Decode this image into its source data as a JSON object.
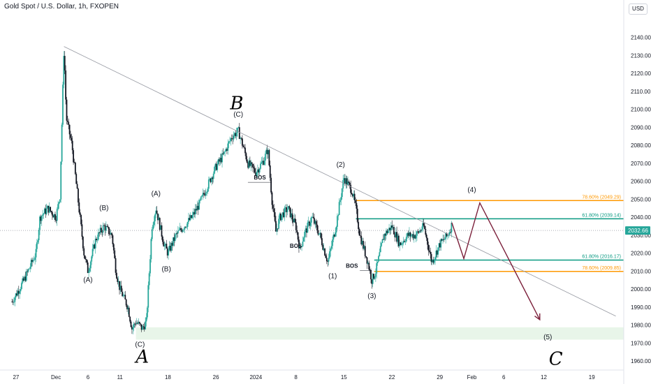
{
  "header": {
    "title": "Gold Spot / U.S. Dollar, 1h, FXOPEN",
    "currency_button": "USD"
  },
  "colors": {
    "up": "#26a69a",
    "down": "#131722",
    "fib_orange": "#ff9800",
    "fib_green": "#089981",
    "projection": "#7b1f3a",
    "zone": "#e8f5e9",
    "price_badge": "#26a69a"
  },
  "chart_data": {
    "type": "candlestick",
    "ylim": [
      1955,
      2150
    ],
    "x_range": [
      -2,
      76
    ],
    "y_ticks": [
      1960,
      1970,
      1980,
      1990,
      2000,
      2010,
      2020,
      2030,
      2040,
      2050,
      2060,
      2070,
      2080,
      2090,
      2100,
      2110,
      2120,
      2130,
      2140
    ],
    "y_tick_labels": [
      "1960.00",
      "1970.00",
      "1980.00",
      "1990.00",
      "2000.00",
      "2010.00",
      "2020.00",
      "2030.00",
      "2040.00",
      "2050.00",
      "2060.00",
      "2070.00",
      "2080.00",
      "2090.00",
      "2100.00",
      "2110.00",
      "2120.00",
      "2130.00",
      "2140.00"
    ],
    "x_ticks": [
      {
        "label": "27",
        "x": 0
      },
      {
        "label": "Dec",
        "x": 5
      },
      {
        "label": "6",
        "x": 9
      },
      {
        "label": "11",
        "x": 13
      },
      {
        "label": "18",
        "x": 19
      },
      {
        "label": "26",
        "x": 25
      },
      {
        "label": "2024",
        "x": 30
      },
      {
        "label": "8",
        "x": 35
      },
      {
        "label": "15",
        "x": 41
      },
      {
        "label": "22",
        "x": 47
      },
      {
        "label": "29",
        "x": 53
      },
      {
        "label": "Feb",
        "x": 57
      },
      {
        "label": "6",
        "x": 61
      },
      {
        "label": "12",
        "x": 66
      },
      {
        "label": "19",
        "x": 72
      }
    ],
    "price_path": [
      [
        -0.5,
        1993
      ],
      [
        1,
        2005
      ],
      [
        2.5,
        2020
      ],
      [
        3,
        2040
      ],
      [
        4,
        2045
      ],
      [
        5,
        2040
      ],
      [
        5.5,
        2052
      ],
      [
        6,
        2135
      ],
      [
        6.3,
        2095
      ],
      [
        7,
        2080
      ],
      [
        7.5,
        2060
      ],
      [
        8,
        2040
      ],
      [
        8.5,
        2020
      ],
      [
        9,
        2010
      ],
      [
        10,
        2028
      ],
      [
        11,
        2035
      ],
      [
        12,
        2030
      ],
      [
        12.5,
        2010
      ],
      [
        13,
        2000
      ],
      [
        14,
        1990
      ],
      [
        14.5,
        1978
      ],
      [
        15,
        1982
      ],
      [
        15.8,
        1978
      ],
      [
        16.3,
        1982
      ],
      [
        17,
        2035
      ],
      [
        17.5,
        2045
      ],
      [
        18,
        2035
      ],
      [
        18.5,
        2025
      ],
      [
        19,
        2020
      ],
      [
        20,
        2030
      ],
      [
        21,
        2035
      ],
      [
        22,
        2040
      ],
      [
        23,
        2048
      ],
      [
        24,
        2058
      ],
      [
        25,
        2068
      ],
      [
        26,
        2075
      ],
      [
        27,
        2085
      ],
      [
        27.8,
        2088
      ],
      [
        28.5,
        2078
      ],
      [
        29,
        2070
      ],
      [
        30,
        2065
      ],
      [
        31,
        2072
      ],
      [
        31.5,
        2078
      ],
      [
        32,
        2050
      ],
      [
        32.5,
        2032
      ],
      [
        33,
        2040
      ],
      [
        34,
        2045
      ],
      [
        35,
        2035
      ],
      [
        35.5,
        2022
      ],
      [
        36,
        2030
      ],
      [
        37,
        2040
      ],
      [
        38,
        2030
      ],
      [
        39,
        2015
      ],
      [
        40,
        2035
      ],
      [
        41,
        2062
      ],
      [
        42,
        2055
      ],
      [
        42.5,
        2045
      ],
      [
        43,
        2030
      ],
      [
        44,
        2015
      ],
      [
        44.5,
        2005
      ],
      [
        45,
        2010
      ],
      [
        46,
        2030
      ],
      [
        47,
        2035
      ],
      [
        48,
        2025
      ],
      [
        49,
        2030
      ],
      [
        50,
        2030
      ],
      [
        51,
        2035
      ],
      [
        52,
        2015
      ],
      [
        53,
        2025
      ],
      [
        54,
        2030
      ],
      [
        54.5,
        2036
      ]
    ],
    "trendline": {
      "from": [
        6,
        2135
      ],
      "to": [
        75,
        1985
      ]
    },
    "support_zone": [
      1975,
      1978
    ],
    "support_zone_x": [
      15,
      76
    ],
    "price_dotted": 2032.66,
    "price_label": "2032.66",
    "fib_levels": [
      {
        "label": "78.60% (2049.29)",
        "value": 2049.29,
        "color": "orange",
        "x_from": 42.5
      },
      {
        "label": "61.80% (2039.14)",
        "value": 2039.14,
        "color": "green",
        "x_from": 42.5
      },
      {
        "label": "61.80% (2016.17)",
        "value": 2016.17,
        "color": "green",
        "x_from": 44.8
      },
      {
        "label": "78.60% (2009.85)",
        "value": 2009.85,
        "color": "orange",
        "x_from": 44.8
      }
    ],
    "projection": [
      [
        54.5,
        2037
      ],
      [
        56,
        2017
      ],
      [
        58,
        2048
      ],
      [
        65.5,
        1983
      ]
    ],
    "wave_labels": [
      {
        "text": "(B)",
        "x": 11,
        "y": 2044
      },
      {
        "text": "(A)",
        "x": 9,
        "y": 2004
      },
      {
        "text": "(C)",
        "x": 15.5,
        "y": 1968
      },
      {
        "text": "(A)",
        "x": 17.5,
        "y": 2052
      },
      {
        "text": "(B)",
        "x": 18.8,
        "y": 2010
      },
      {
        "text": "(C)",
        "x": 27.8,
        "y": 2096
      },
      {
        "text": "(2)",
        "x": 40.6,
        "y": 2068
      },
      {
        "text": "(1)",
        "x": 39.6,
        "y": 2006
      },
      {
        "text": "(3)",
        "x": 44.5,
        "y": 1995
      },
      {
        "text": "(4)",
        "x": 57,
        "y": 2054
      },
      {
        "text": "(5)",
        "x": 66.5,
        "y": 1972
      }
    ],
    "big_labels": [
      {
        "text": "B",
        "x": 27.6,
        "y": 2100
      },
      {
        "text": "A",
        "x": 15.8,
        "y": 1959
      },
      {
        "text": "C",
        "x": 67.5,
        "y": 1958
      }
    ],
    "bos_labels": [
      {
        "text": "BOS",
        "x": 30.5,
        "y": 2061,
        "line_from": 29,
        "line_to": 32
      },
      {
        "text": "BOS",
        "x": 35,
        "y": 2023,
        "line_from": 35,
        "line_to": 35
      },
      {
        "text": "BOS",
        "x": 42,
        "y": 2012,
        "line_from": 43,
        "line_to": 44.5
      }
    ]
  }
}
